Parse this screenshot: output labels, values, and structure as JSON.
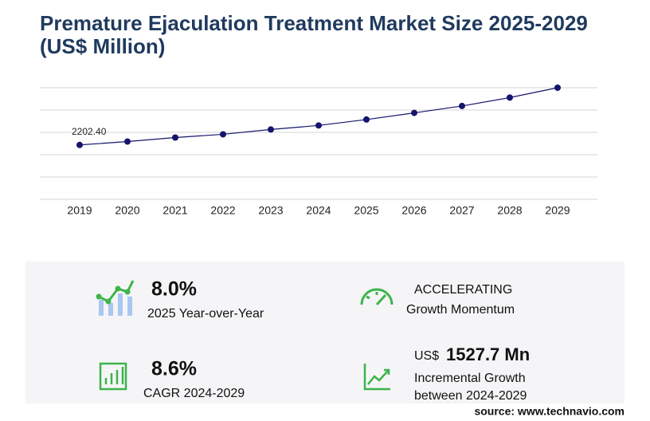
{
  "chart_data": {
    "type": "line",
    "title": "Premature Ejaculation Treatment Market Size 2025-2029",
    "subtitle": "(US$ Million)",
    "categories": [
      "2019",
      "2020",
      "2021",
      "2022",
      "2023",
      "2024",
      "2025",
      "2026",
      "2027",
      "2028",
      "2029"
    ],
    "values": [
      2202.4,
      2340,
      2502,
      2633,
      2828,
      2992,
      3231,
      3500,
      3780,
      4120,
      4520
    ],
    "value_labels": [
      "2202.40",
      null,
      null,
      null,
      null,
      null,
      null,
      null,
      null,
      null,
      null
    ],
    "color": "#15156b",
    "ylim": [
      0,
      4520
    ],
    "grid": true
  },
  "stats": {
    "yoy": {
      "value": "8.0%",
      "label": "2025 Year-over-Year"
    },
    "momentum": {
      "value": "ACCELERATING",
      "label": "Growth Momentum"
    },
    "cagr": {
      "value": "8.6%",
      "label": "CAGR 2024-2029"
    },
    "incremental": {
      "unit": "US$",
      "value": "1527.7 Mn",
      "label1": "Incremental Growth",
      "label2": "between 2024-2029"
    },
    "source": "source: www.technavio.com"
  }
}
